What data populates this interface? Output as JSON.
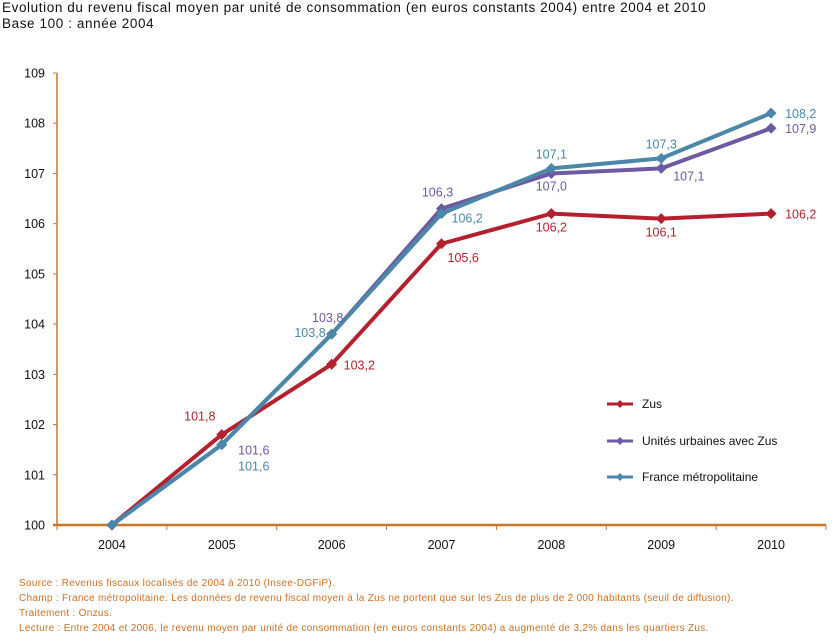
{
  "header": {
    "title_line1": "Evolution du revenu fiscal moyen par unité de consommation (en euros constants 2004) entre 2004 et 2010",
    "title_line2": "Base 100 : année 2004"
  },
  "notes": {
    "source": "Source : Revenus fiscaux localisés de 2004 à 2010 (Insee-DGFiP).",
    "champ": "Champ : France métropolitaine. Les données de revenu fiscal moyen à la Zus ne portent que sur les Zus de plus de 2 000 habitants (seuil de diffusion).",
    "traitement": "Traitement : Onzus.",
    "lecture": "Lecture : Entre 2004 et 2006, le revenu moyen par unité de consommation (en euros constants 2004) a augmenté de 3,2%  dans les quartiers Zus."
  },
  "chart_data": {
    "type": "line",
    "title": "Evolution du revenu fiscal moyen par unité de consommation (en euros constants 2004) entre 2004 et 2010",
    "subtitle": "Base 100 : année 2004",
    "xlabel": "",
    "ylabel": "",
    "categories": [
      "2004",
      "2005",
      "2006",
      "2007",
      "2008",
      "2009",
      "2010"
    ],
    "ylim": [
      100,
      109
    ],
    "yticks": [
      "100",
      "101",
      "102",
      "103",
      "104",
      "105",
      "106",
      "107",
      "108",
      "109"
    ],
    "grid": false,
    "legend_position": "bottom-right",
    "series": [
      {
        "name": "Zus",
        "color": "#b5202e",
        "values": [
          100,
          101.8,
          103.2,
          105.6,
          106.2,
          106.1,
          106.2
        ],
        "labels": [
          "",
          "101,8",
          "103,2",
          "105,6",
          "106,2",
          "106,1",
          "106,2"
        ]
      },
      {
        "name": "Unités urbaines avec Zus",
        "color": "#6e5aa0",
        "values": [
          100,
          101.6,
          103.8,
          106.3,
          107.0,
          107.1,
          107.9
        ],
        "labels": [
          "",
          "101,6",
          "103,8",
          "106,3",
          "107,0",
          "107,1",
          "107,9"
        ]
      },
      {
        "name": "France métropolitaine",
        "color": "#4a87a8",
        "values": [
          100,
          101.6,
          103.8,
          106.2,
          107.1,
          107.3,
          108.2
        ],
        "labels": [
          "",
          "101,6",
          "103,8",
          "106,2",
          "107,1",
          "107,3",
          "108,2"
        ]
      }
    ],
    "axis_color": "#c8762a"
  }
}
